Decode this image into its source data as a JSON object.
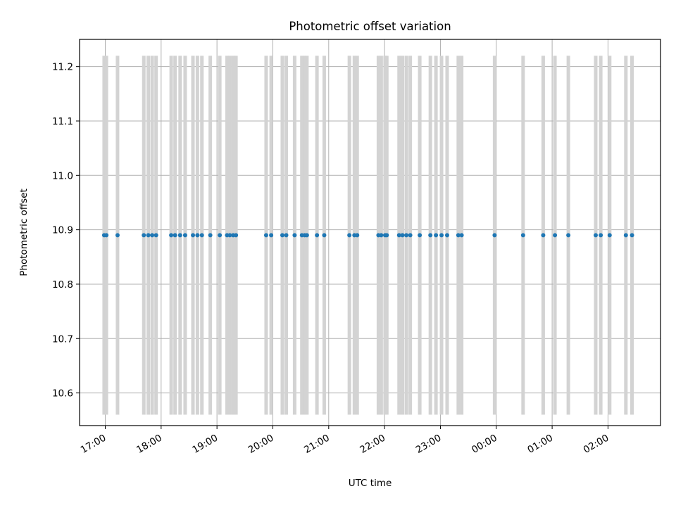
{
  "chart_data": {
    "type": "scatter",
    "title": "Photometric offset variation",
    "xlabel": "UTC time",
    "ylabel": "Photometric offset",
    "xlim_hours": [
      16.54,
      26.94
    ],
    "ylim": [
      10.54,
      11.25
    ],
    "x_ticks": [
      {
        "value": 17,
        "label": "17:00"
      },
      {
        "value": 18,
        "label": "18:00"
      },
      {
        "value": 19,
        "label": "19:00"
      },
      {
        "value": 20,
        "label": "20:00"
      },
      {
        "value": 21,
        "label": "21:00"
      },
      {
        "value": 22,
        "label": "22:00"
      },
      {
        "value": 23,
        "label": "23:00"
      },
      {
        "value": 24,
        "label": "00:00"
      },
      {
        "value": 25,
        "label": "01:00"
      },
      {
        "value": 26,
        "label": "02:00"
      }
    ],
    "y_ticks": [
      {
        "value": 10.6,
        "label": "10.6"
      },
      {
        "value": 10.7,
        "label": "10.7"
      },
      {
        "value": 10.8,
        "label": "10.8"
      },
      {
        "value": 10.9,
        "label": "10.9"
      },
      {
        "value": 11.0,
        "label": "11.0"
      },
      {
        "value": 11.1,
        "label": "11.1"
      },
      {
        "value": 11.2,
        "label": "11.2"
      }
    ],
    "grid": true,
    "series": [
      {
        "marker_color": "#1f77b4",
        "errorbar_color": "#d3d3d3",
        "y_value": 10.89,
        "y_error_low": 10.56,
        "y_error_high": 11.22,
        "x_hours": [
          16.98,
          17.02,
          17.22,
          17.69,
          17.77,
          17.84,
          17.91,
          18.18,
          18.25,
          18.34,
          18.43,
          18.57,
          18.65,
          18.73,
          18.88,
          19.05,
          19.18,
          19.23,
          19.29,
          19.34,
          19.88,
          19.97,
          20.17,
          20.24,
          20.39,
          20.52,
          20.57,
          20.61,
          20.79,
          20.92,
          21.37,
          21.46,
          21.51,
          21.89,
          21.94,
          22.01,
          22.04,
          22.26,
          22.32,
          22.39,
          22.46,
          22.63,
          22.82,
          22.92,
          23.02,
          23.12,
          23.32,
          23.38,
          23.97,
          24.48,
          24.84,
          25.05,
          25.29,
          25.78,
          25.87,
          26.03,
          26.32,
          26.43
        ]
      }
    ]
  }
}
